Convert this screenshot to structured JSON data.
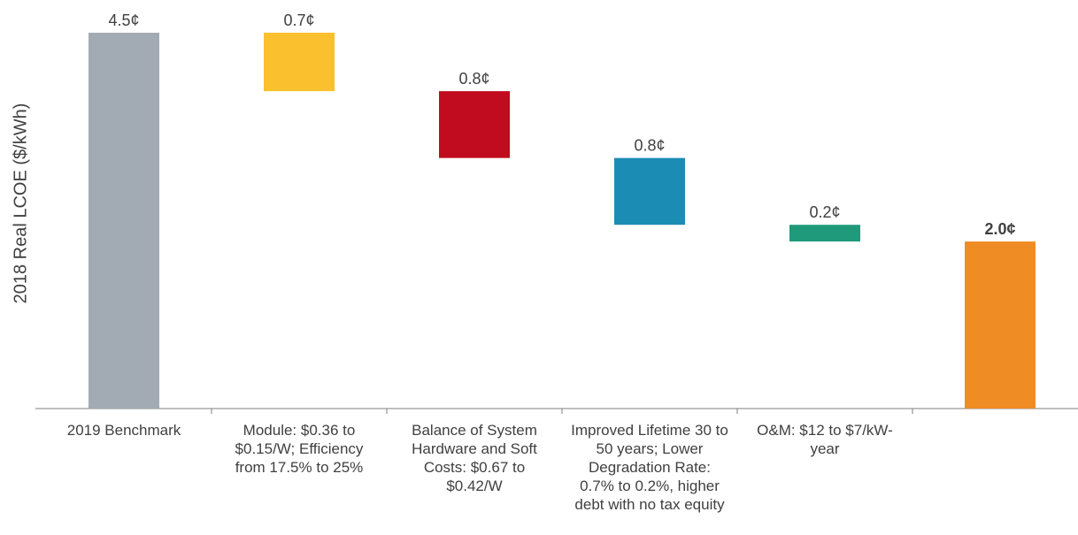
{
  "chart_data": {
    "type": "waterfall",
    "y_label": "2018 Real LCOE ($/kWh)",
    "categories": [
      "2019 Benchmark",
      "Module: $0.36 to $0.15/W; Efficiency from 17.5% to 25%",
      "Balance of System Hardware and Soft Costs: $0.67 to $0.42/W",
      "Improved Lifetime 30 to 50 years; Lower Degradation Rate: 0.7% to 0.2%, higher debt with no tax equity",
      "O&M: $12 to $7/kW-year",
      null
    ],
    "values": [
      4.5,
      0.7,
      0.8,
      0.8,
      0.2,
      2.0
    ],
    "value_labels": [
      "4.5¢",
      "0.7¢",
      "0.8¢",
      "0.8¢",
      "0.2¢",
      "2.0¢"
    ],
    "measure": [
      "absolute",
      "decrease",
      "decrease",
      "decrease",
      "decrease",
      "total"
    ],
    "colors": [
      "#a2abb3",
      "#fbc02d",
      "#c00c1e",
      "#1b8db5",
      "#1f9a7a",
      "#f08c24"
    ],
    "ylim": [
      0,
      4.5
    ]
  }
}
